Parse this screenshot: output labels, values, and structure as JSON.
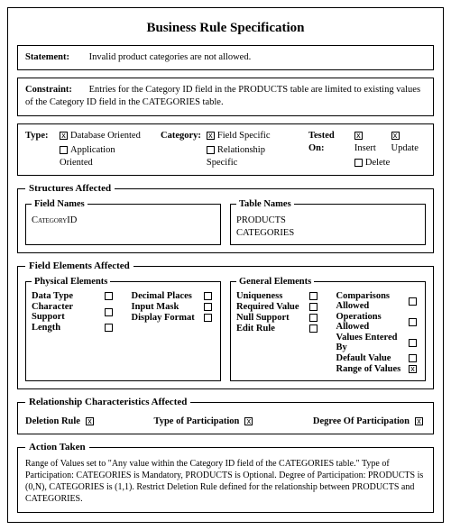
{
  "title": "Business Rule Specification",
  "statement": {
    "label": "Statement:",
    "text": "Invalid product categories are not allowed."
  },
  "constraint": {
    "label": "Constraint:",
    "text": "Entries for the Category ID field in the PRODUCTS table are limited to existing values of the Category ID field in the CATEGORIES table."
  },
  "types": {
    "type_label": "Type:",
    "type_opts": [
      {
        "name": "Database Oriented",
        "checked": true
      },
      {
        "name": "Application Oriented",
        "checked": false
      }
    ],
    "cat_label": "Category:",
    "cat_opts": [
      {
        "name": "Field Specific",
        "checked": true
      },
      {
        "name": "Relationship Specific",
        "checked": false
      }
    ],
    "tested_label": "Tested On:",
    "tested_opts_row1": [
      {
        "name": "Insert",
        "checked": true
      },
      {
        "name": "Update",
        "checked": true
      }
    ],
    "tested_opts_row2": [
      {
        "name": "Delete",
        "checked": false
      }
    ]
  },
  "structures": {
    "legend": "Structures Affected",
    "fields": {
      "legend": "Field Names",
      "items": [
        "CategoryID"
      ]
    },
    "tables": {
      "legend": "Table Names",
      "items": [
        "PRODUCTS",
        "CATEGORIES"
      ]
    }
  },
  "elements": {
    "legend": "Field Elements Affected",
    "physical": {
      "legend": "Physical Elements",
      "left": [
        "Data Type",
        "Character Support",
        "Length"
      ],
      "right": [
        "Decimal Places",
        "Input Mask",
        "Display Format"
      ]
    },
    "general": {
      "legend": "General Elements",
      "left": [
        {
          "name": "Uniqueness",
          "checked": false
        },
        {
          "name": "Required Value",
          "checked": false
        },
        {
          "name": "Null Support",
          "checked": false
        },
        {
          "name": "Edit Rule",
          "checked": false
        }
      ],
      "right": [
        {
          "name": "Comparisons Allowed",
          "checked": false
        },
        {
          "name": "Operations Allowed",
          "checked": false
        },
        {
          "name": "Values Entered By",
          "checked": false
        },
        {
          "name": "Default Value",
          "checked": false
        },
        {
          "name": "Range of Values",
          "checked": true
        }
      ]
    }
  },
  "relationship": {
    "legend": "Relationship Characteristics Affected",
    "items": [
      {
        "name": "Deletion Rule",
        "checked": true
      },
      {
        "name": "Type of Participation",
        "checked": true
      },
      {
        "name": "Degree Of Participation",
        "checked": true
      }
    ]
  },
  "action": {
    "legend": "Action Taken",
    "text": "Range of Values set to \"Any value within the Category ID field of the CATEGORIES table.\" Type of Participation: CATEGORIES is Mandatory, PRODUCTS is Optional. Degree of Participation: PRODUCTS is (0,N), CATEGORIES is (1,1). Restrict Deletion Rule defined for the relationship between PRODUCTS and CATEGORIES."
  }
}
